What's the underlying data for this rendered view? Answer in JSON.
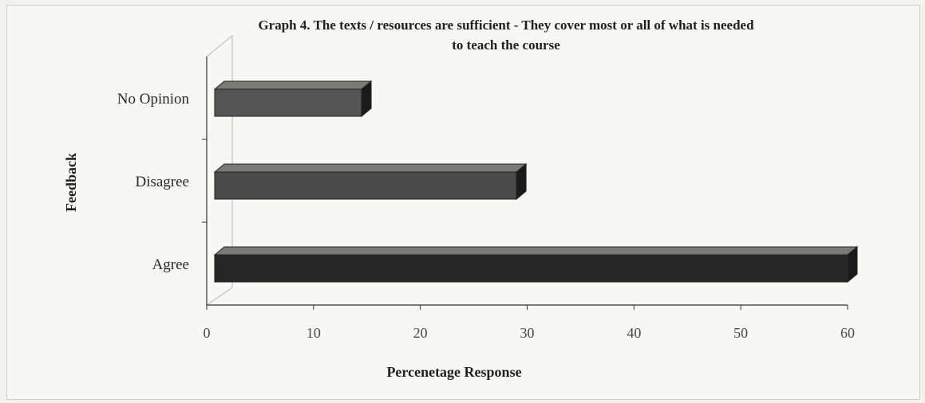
{
  "chart_data": {
    "type": "bar",
    "orientation": "horizontal",
    "title": "Graph 4. The texts / resources are sufficient - They cover most or all of what is needed to teach the course",
    "title_lines": [
      "Graph 4. The texts / resources are sufficient - They cover most or all of what is needed",
      "to teach the course"
    ],
    "xlabel": "Percenetage Response",
    "ylabel": "Feedback",
    "categories": [
      "No Opinion",
      "Disagree",
      "Agree"
    ],
    "values": [
      14.5,
      29,
      60
    ],
    "xlim": [
      0,
      60
    ],
    "xticks": [
      0,
      10,
      20,
      30,
      40,
      50,
      60
    ],
    "grid": false,
    "legend": "none",
    "bar_colors": [
      "#555555",
      "#4a4a4a",
      "#262626"
    ]
  }
}
